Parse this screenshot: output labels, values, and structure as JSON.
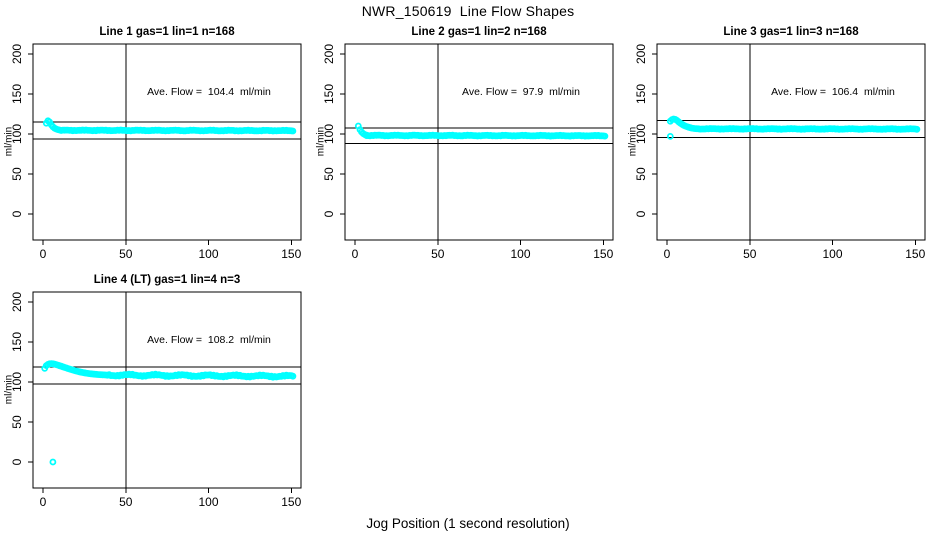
{
  "page": {
    "main_title": "NWR_150619  Line Flow Shapes",
    "bottom_axis_title": "Jog Position (1 second resolution)",
    "background_color": "#ffffff",
    "point_color": "#00ffff",
    "line_color": "#000000"
  },
  "chart_data": {
    "type": "scatter",
    "title": "NWR_150619  Line Flow Shapes",
    "xlabel": "Jog Position (1 second resolution)",
    "ylabel": "ml/min",
    "x_ticks": [
      0,
      50,
      100,
      150
    ],
    "y_ticks": [
      0,
      50,
      100,
      150,
      200
    ],
    "xlim": [
      0,
      151
    ],
    "ylim": [
      0,
      200
    ],
    "grid": false,
    "marker": "open-circle",
    "marker_color": "#00ffff",
    "crosshair_x": 50,
    "panels": [
      {
        "title": "Line 1 gas=1 lin=1 n=168",
        "annotation": "Ave. Flow =  104.4  ml/min",
        "ave_flow": 104.4,
        "n": 168,
        "ref_lines": [
          114.8,
          94.0
        ],
        "transient": [
          [
            2,
            113.5
          ],
          [
            3,
            116.5
          ],
          [
            4,
            115
          ],
          [
            5,
            111.5
          ],
          [
            6,
            109
          ],
          [
            7,
            107.3
          ],
          [
            8,
            106.2
          ],
          [
            9,
            105.5
          ],
          [
            10,
            105
          ]
        ],
        "plateau": {
          "x_from": 11,
          "x_to": 151,
          "y_start": 104.6,
          "y_end": 104.2,
          "wobble_amp": 0.3,
          "wobble_period": 11,
          "jitter_amp": 0.2
        },
        "outliers": []
      },
      {
        "title": "Line 2 gas=1 lin=2 n=168",
        "annotation": "Ave. Flow =  97.9  ml/min",
        "ave_flow": 97.9,
        "n": 168,
        "ref_lines": [
          107.7,
          88.1
        ],
        "transient": [
          [
            2,
            110
          ],
          [
            3,
            105.5
          ],
          [
            4,
            102.5
          ],
          [
            5,
            100.5
          ],
          [
            6,
            99.2
          ],
          [
            7,
            98.5
          ]
        ],
        "plateau": {
          "x_from": 7,
          "x_to": 151,
          "y_start": 98.2,
          "y_end": 97.8,
          "wobble_amp": 0.3,
          "wobble_period": 11,
          "jitter_amp": 0.2
        },
        "outliers": []
      },
      {
        "title": "Line 3 gas=1 lin=3 n=168",
        "annotation": "Ave. Flow =  106.4  ml/min",
        "ave_flow": 106.4,
        "n": 168,
        "ref_lines": [
          117.0,
          95.8
        ],
        "transient": [
          [
            2,
            116
          ],
          [
            3,
            118
          ],
          [
            4,
            118.8
          ],
          [
            5,
            118.3
          ],
          [
            6,
            117
          ],
          [
            7,
            115.3
          ],
          [
            8,
            113.6
          ],
          [
            9,
            112.2
          ],
          [
            10,
            111
          ],
          [
            11,
            110
          ],
          [
            12,
            109.2
          ],
          [
            13,
            108.5
          ],
          [
            14,
            107.9
          ],
          [
            15,
            107.4
          ],
          [
            16,
            107
          ],
          [
            17,
            106.8
          ],
          [
            18,
            106.6
          ]
        ],
        "plateau": {
          "x_from": 19,
          "x_to": 151,
          "y_start": 106.5,
          "y_end": 106.2,
          "wobble_amp": 0.3,
          "wobble_period": 12,
          "jitter_amp": 0.2
        },
        "outliers": [
          [
            2,
            97
          ]
        ]
      },
      {
        "title": "Line 4 (LT) gas=1 lin=4 n=3",
        "annotation": "Ave. Flow =  108.2  ml/min",
        "ave_flow": 108.2,
        "n": 3,
        "ref_lines": [
          119.0,
          97.4
        ],
        "transient": [
          [
            1,
            117
          ],
          [
            2,
            120.5
          ],
          [
            3,
            122
          ],
          [
            4,
            122.8
          ],
          [
            5,
            123
          ],
          [
            6,
            122.8
          ],
          [
            7,
            122.4
          ],
          [
            8,
            121.8
          ],
          [
            9,
            121.1
          ],
          [
            10,
            120.4
          ],
          [
            11,
            119.7
          ],
          [
            12,
            119
          ],
          [
            13,
            118.3
          ],
          [
            14,
            117.6
          ],
          [
            15,
            116.9
          ],
          [
            16,
            116.2
          ],
          [
            17,
            115.6
          ],
          [
            18,
            115
          ],
          [
            19,
            114.4
          ],
          [
            20,
            113.8
          ],
          [
            21,
            113.3
          ],
          [
            22,
            112.8
          ],
          [
            23,
            112.3
          ],
          [
            24,
            111.9
          ],
          [
            25,
            111.5
          ],
          [
            26,
            111.1
          ],
          [
            27,
            110.8
          ],
          [
            28,
            110.5
          ],
          [
            29,
            110.2
          ],
          [
            30,
            110
          ],
          [
            31,
            109.8
          ],
          [
            32,
            109.6
          ],
          [
            33,
            109.4
          ],
          [
            34,
            109.2
          ],
          [
            35,
            109.1
          ],
          [
            36,
            109
          ],
          [
            37,
            108.9
          ],
          [
            38,
            108.8
          ]
        ],
        "plateau": {
          "x_from": 39,
          "x_to": 151,
          "y_start": 108.7,
          "y_end": 107.2,
          "wobble_amp": 0.9,
          "wobble_period": 16,
          "jitter_amp": 0.5
        },
        "outliers": [
          [
            6,
            0
          ]
        ]
      }
    ]
  }
}
